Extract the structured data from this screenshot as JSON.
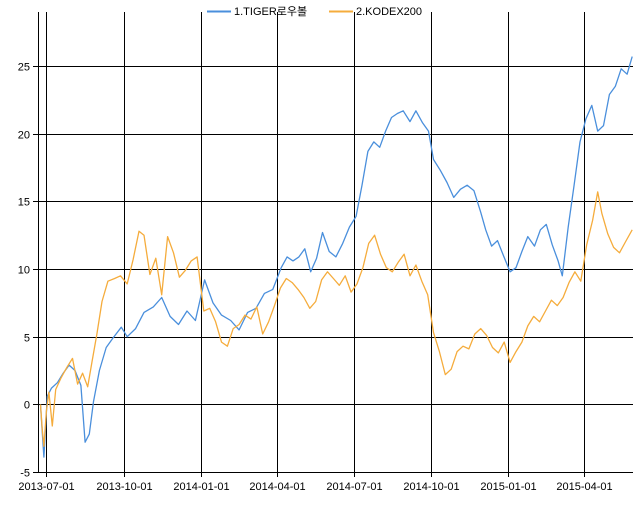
{
  "chart_data": {
    "type": "line",
    "title": "",
    "xlabel": "",
    "ylabel": "",
    "xlim": [
      "2013-06-21",
      "2015-05-29"
    ],
    "ylim": [
      -5,
      29
    ],
    "x_ticks": [
      "2013-07-01",
      "2013-10-01",
      "2014-01-01",
      "2014-04-01",
      "2014-07-01",
      "2014-10-01",
      "2015-01-01",
      "2015-04-01"
    ],
    "y_ticks": [
      -5,
      0,
      5,
      10,
      15,
      20,
      25
    ],
    "grid": true,
    "legend_position": "top-center",
    "series": [
      {
        "name": "1.TIGER로우볼",
        "color": "#4a8fdc",
        "points": [
          [
            "2013-06-24",
            0.0
          ],
          [
            "2013-06-26",
            -2.0
          ],
          [
            "2013-06-28",
            -3.9
          ],
          [
            "2013-07-02",
            0.6
          ],
          [
            "2013-07-07",
            1.2
          ],
          [
            "2013-07-14",
            1.6
          ],
          [
            "2013-07-21",
            2.3
          ],
          [
            "2013-07-28",
            2.9
          ],
          [
            "2013-08-04",
            2.5
          ],
          [
            "2013-08-11",
            1.4
          ],
          [
            "2013-08-16",
            -2.8
          ],
          [
            "2013-08-21",
            -2.2
          ],
          [
            "2013-08-26",
            0.2
          ],
          [
            "2013-09-02",
            2.5
          ],
          [
            "2013-09-10",
            4.2
          ],
          [
            "2013-09-18",
            4.9
          ],
          [
            "2013-09-28",
            5.7
          ],
          [
            "2013-10-05",
            5.0
          ],
          [
            "2013-10-15",
            5.6
          ],
          [
            "2013-10-25",
            6.8
          ],
          [
            "2013-11-05",
            7.2
          ],
          [
            "2013-11-15",
            7.9
          ],
          [
            "2013-11-25",
            6.5
          ],
          [
            "2013-12-05",
            5.9
          ],
          [
            "2013-12-15",
            6.9
          ],
          [
            "2013-12-25",
            6.2
          ],
          [
            "2014-01-05",
            9.2
          ],
          [
            "2014-01-15",
            7.5
          ],
          [
            "2014-01-25",
            6.6
          ],
          [
            "2014-02-05",
            6.2
          ],
          [
            "2014-02-15",
            5.5
          ],
          [
            "2014-02-25",
            6.8
          ],
          [
            "2014-03-07",
            7.1
          ],
          [
            "2014-03-17",
            8.2
          ],
          [
            "2014-03-27",
            8.5
          ],
          [
            "2014-04-06",
            10.1
          ],
          [
            "2014-04-13",
            10.9
          ],
          [
            "2014-04-20",
            10.6
          ],
          [
            "2014-04-27",
            10.9
          ],
          [
            "2014-05-04",
            11.5
          ],
          [
            "2014-05-11",
            9.8
          ],
          [
            "2014-05-18",
            10.8
          ],
          [
            "2014-05-25",
            12.7
          ],
          [
            "2014-06-02",
            11.3
          ],
          [
            "2014-06-10",
            10.9
          ],
          [
            "2014-06-18",
            11.9
          ],
          [
            "2014-06-26",
            13.1
          ],
          [
            "2014-07-04",
            13.9
          ],
          [
            "2014-07-11",
            16.2
          ],
          [
            "2014-07-18",
            18.7
          ],
          [
            "2014-07-25",
            19.4
          ],
          [
            "2014-08-01",
            19.0
          ],
          [
            "2014-08-08",
            20.2
          ],
          [
            "2014-08-15",
            21.2
          ],
          [
            "2014-08-22",
            21.5
          ],
          [
            "2014-08-29",
            21.7
          ],
          [
            "2014-09-06",
            20.9
          ],
          [
            "2014-09-13",
            21.7
          ],
          [
            "2014-09-21",
            20.8
          ],
          [
            "2014-09-28",
            20.2
          ],
          [
            "2014-10-04",
            18.1
          ],
          [
            "2014-10-12",
            17.3
          ],
          [
            "2014-10-20",
            16.4
          ],
          [
            "2014-10-28",
            15.3
          ],
          [
            "2014-11-05",
            15.9
          ],
          [
            "2014-11-13",
            16.2
          ],
          [
            "2014-11-21",
            15.8
          ],
          [
            "2014-11-29",
            14.2
          ],
          [
            "2014-12-05",
            12.9
          ],
          [
            "2014-12-12",
            11.7
          ],
          [
            "2014-12-19",
            12.1
          ],
          [
            "2014-12-26",
            11.0
          ],
          [
            "2015-01-03",
            9.8
          ],
          [
            "2015-01-10",
            10.1
          ],
          [
            "2015-01-17",
            11.3
          ],
          [
            "2015-01-24",
            12.4
          ],
          [
            "2015-02-01",
            11.7
          ],
          [
            "2015-02-08",
            12.9
          ],
          [
            "2015-02-15",
            13.3
          ],
          [
            "2015-02-22",
            11.8
          ],
          [
            "2015-03-01",
            10.6
          ],
          [
            "2015-03-06",
            9.5
          ],
          [
            "2015-03-13",
            13.1
          ],
          [
            "2015-03-20",
            16.2
          ],
          [
            "2015-03-27",
            19.4
          ],
          [
            "2015-04-03",
            21.1
          ],
          [
            "2015-04-10",
            22.1
          ],
          [
            "2015-04-17",
            20.2
          ],
          [
            "2015-04-24",
            20.6
          ],
          [
            "2015-05-01",
            22.9
          ],
          [
            "2015-05-08",
            23.5
          ],
          [
            "2015-05-15",
            24.8
          ],
          [
            "2015-05-22",
            24.4
          ],
          [
            "2015-05-28",
            25.7
          ]
        ]
      },
      {
        "name": "2.KODEX200",
        "color": "#f5ac3c",
        "points": [
          [
            "2013-06-24",
            0.0
          ],
          [
            "2013-06-26",
            -1.8
          ],
          [
            "2013-06-28",
            -3.1
          ],
          [
            "2013-07-01",
            -0.5
          ],
          [
            "2013-07-04",
            0.9
          ],
          [
            "2013-07-08",
            -1.6
          ],
          [
            "2013-07-12",
            1.1
          ],
          [
            "2013-07-18",
            1.9
          ],
          [
            "2013-07-25",
            2.7
          ],
          [
            "2013-08-01",
            3.4
          ],
          [
            "2013-08-07",
            1.5
          ],
          [
            "2013-08-13",
            2.3
          ],
          [
            "2013-08-19",
            1.3
          ],
          [
            "2013-08-24",
            3.1
          ],
          [
            "2013-08-30",
            5.2
          ],
          [
            "2013-09-05",
            7.6
          ],
          [
            "2013-09-12",
            9.1
          ],
          [
            "2013-09-20",
            9.3
          ],
          [
            "2013-09-27",
            9.5
          ],
          [
            "2013-10-05",
            8.9
          ],
          [
            "2013-10-12",
            10.7
          ],
          [
            "2013-10-19",
            12.8
          ],
          [
            "2013-10-25",
            12.5
          ],
          [
            "2013-11-01",
            9.6
          ],
          [
            "2013-11-08",
            10.8
          ],
          [
            "2013-11-15",
            8.1
          ],
          [
            "2013-11-22",
            12.4
          ],
          [
            "2013-11-29",
            11.2
          ],
          [
            "2013-12-06",
            9.4
          ],
          [
            "2013-12-13",
            9.9
          ],
          [
            "2013-12-20",
            10.6
          ],
          [
            "2013-12-27",
            10.9
          ],
          [
            "2014-01-04",
            6.9
          ],
          [
            "2014-01-11",
            7.1
          ],
          [
            "2014-01-18",
            6.1
          ],
          [
            "2014-01-25",
            4.6
          ],
          [
            "2014-02-01",
            4.3
          ],
          [
            "2014-02-08",
            5.6
          ],
          [
            "2014-02-15",
            5.9
          ],
          [
            "2014-02-22",
            6.6
          ],
          [
            "2014-03-01",
            6.3
          ],
          [
            "2014-03-08",
            7.2
          ],
          [
            "2014-03-15",
            5.2
          ],
          [
            "2014-03-22",
            6.1
          ],
          [
            "2014-03-29",
            7.3
          ],
          [
            "2014-04-05",
            8.6
          ],
          [
            "2014-04-12",
            9.3
          ],
          [
            "2014-04-19",
            9.0
          ],
          [
            "2014-04-26",
            8.5
          ],
          [
            "2014-05-03",
            7.9
          ],
          [
            "2014-05-10",
            7.1
          ],
          [
            "2014-05-17",
            7.6
          ],
          [
            "2014-05-24",
            9.2
          ],
          [
            "2014-05-31",
            9.8
          ],
          [
            "2014-06-07",
            9.3
          ],
          [
            "2014-06-14",
            8.8
          ],
          [
            "2014-06-21",
            9.5
          ],
          [
            "2014-06-28",
            8.3
          ],
          [
            "2014-07-05",
            8.9
          ],
          [
            "2014-07-12",
            10.1
          ],
          [
            "2014-07-19",
            11.9
          ],
          [
            "2014-07-26",
            12.5
          ],
          [
            "2014-08-02",
            11.1
          ],
          [
            "2014-08-09",
            10.1
          ],
          [
            "2014-08-16",
            9.8
          ],
          [
            "2014-08-23",
            10.5
          ],
          [
            "2014-08-30",
            11.1
          ],
          [
            "2014-09-06",
            9.5
          ],
          [
            "2014-09-13",
            10.3
          ],
          [
            "2014-09-20",
            9.1
          ],
          [
            "2014-09-27",
            8.1
          ],
          [
            "2014-10-04",
            5.3
          ],
          [
            "2014-10-11",
            3.9
          ],
          [
            "2014-10-18",
            2.2
          ],
          [
            "2014-10-25",
            2.6
          ],
          [
            "2014-11-01",
            3.9
          ],
          [
            "2014-11-08",
            4.3
          ],
          [
            "2014-11-15",
            4.1
          ],
          [
            "2014-11-22",
            5.2
          ],
          [
            "2014-11-29",
            5.6
          ],
          [
            "2014-12-06",
            5.1
          ],
          [
            "2014-12-13",
            4.2
          ],
          [
            "2014-12-20",
            3.8
          ],
          [
            "2014-12-27",
            4.6
          ],
          [
            "2015-01-03",
            3.1
          ],
          [
            "2015-01-10",
            3.9
          ],
          [
            "2015-01-17",
            4.6
          ],
          [
            "2015-01-24",
            5.8
          ],
          [
            "2015-01-31",
            6.5
          ],
          [
            "2015-02-07",
            6.1
          ],
          [
            "2015-02-14",
            6.9
          ],
          [
            "2015-02-21",
            7.7
          ],
          [
            "2015-02-28",
            7.3
          ],
          [
            "2015-03-07",
            7.9
          ],
          [
            "2015-03-14",
            9.0
          ],
          [
            "2015-03-21",
            9.8
          ],
          [
            "2015-03-28",
            9.1
          ],
          [
            "2015-04-04",
            11.8
          ],
          [
            "2015-04-11",
            13.6
          ],
          [
            "2015-04-17",
            15.7
          ],
          [
            "2015-04-22",
            14.1
          ],
          [
            "2015-04-29",
            12.6
          ],
          [
            "2015-05-06",
            11.6
          ],
          [
            "2015-05-13",
            11.2
          ],
          [
            "2015-05-20",
            12.0
          ],
          [
            "2015-05-28",
            12.9
          ]
        ]
      }
    ]
  }
}
